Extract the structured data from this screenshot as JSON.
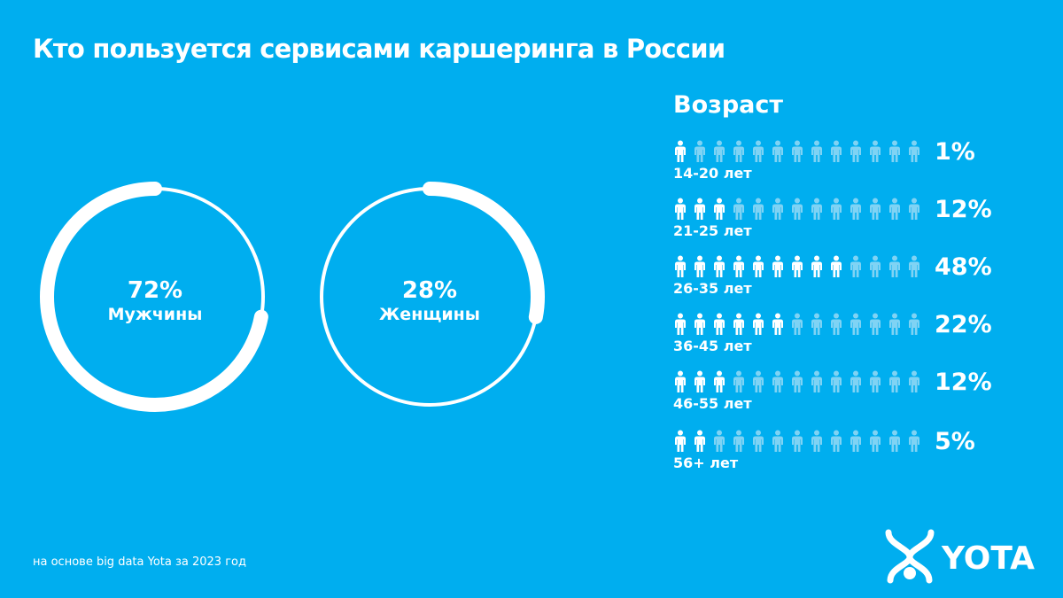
{
  "title": "Кто пользуется сервисами каршеринга в России",
  "colors": {
    "background": "#00aeef",
    "filled": "#ffffff",
    "empty": "#7fd3f4"
  },
  "chart_data": [
    {
      "type": "pie",
      "style": "donut",
      "slices": [
        {
          "label": "Мужчины",
          "value": 72,
          "display": "72%"
        },
        {
          "label": "Женщины",
          "value": 28,
          "display": "28%"
        }
      ]
    },
    {
      "type": "bar",
      "style": "pictogram",
      "title": "Возраст",
      "icons_per_row": 13,
      "categories": [
        "14-20 лет",
        "21-25 лет",
        "26-35 лет",
        "36-45 лет",
        "46-55 лет",
        "56+ лет"
      ],
      "values": [
        1,
        12,
        48,
        22,
        12,
        5
      ],
      "labels": [
        "1%",
        "12%",
        "48%",
        "22%",
        "12%",
        "5%"
      ],
      "filled_icons": [
        1,
        3,
        9,
        6,
        3,
        2
      ]
    }
  ],
  "footnote": "на основе big data Yota за 2023 год",
  "logo": {
    "text": "YOTA",
    "icon": "yota-logo-icon"
  }
}
